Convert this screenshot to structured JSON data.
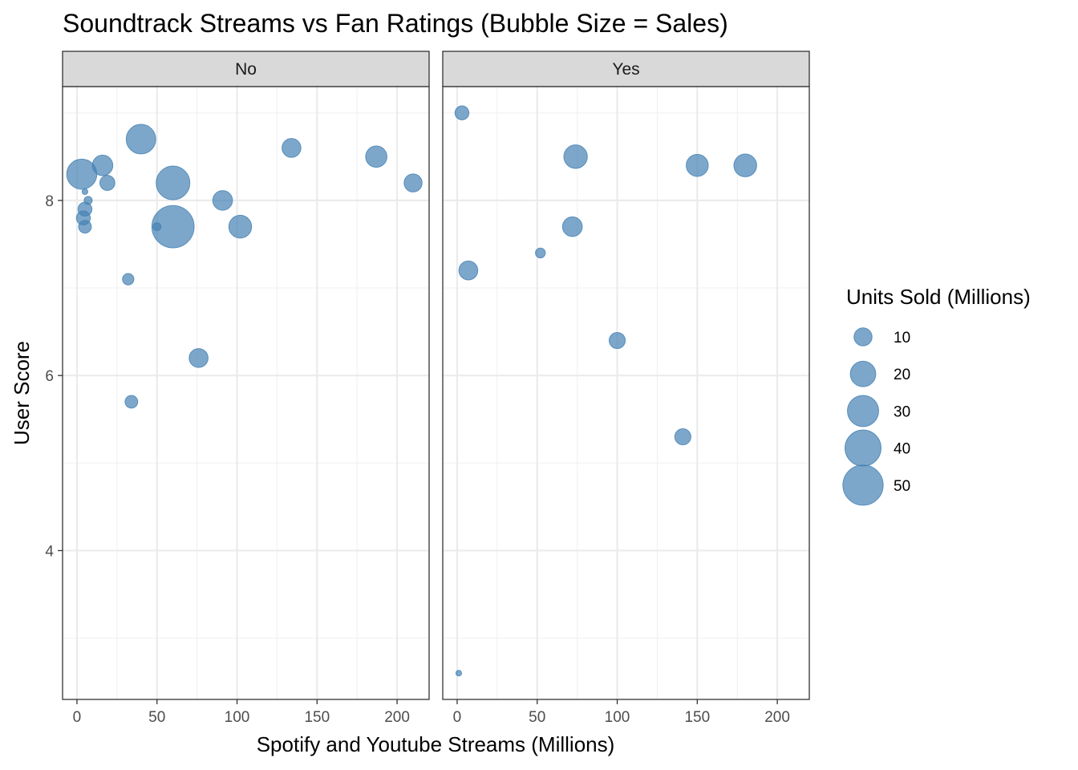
{
  "chart_data": {
    "type": "scatter",
    "title": "Soundtrack Streams vs Fan Ratings (Bubble Size = Sales)",
    "xlabel": "Spotify and Youtube Streams (Millions)",
    "ylabel": "User Score",
    "xlim": [
      -9,
      220
    ],
    "ylim": [
      2.3,
      9.3
    ],
    "x_ticks": [
      0,
      50,
      100,
      150,
      200
    ],
    "y_ticks": [
      4,
      6,
      8
    ],
    "grid": true,
    "point_color": "#4682B4",
    "legend": {
      "title": "Units Sold (Millions)",
      "placement": "right",
      "values": [
        10,
        20,
        30,
        40,
        50
      ]
    },
    "facets": [
      {
        "label": "No",
        "points": [
          {
            "x": 3,
            "y": 8.3,
            "size": 28
          },
          {
            "x": 5,
            "y": 8.1,
            "size": 1
          },
          {
            "x": 7,
            "y": 8.0,
            "size": 2
          },
          {
            "x": 5,
            "y": 7.9,
            "size": 6
          },
          {
            "x": 4,
            "y": 7.8,
            "size": 6
          },
          {
            "x": 5,
            "y": 7.7,
            "size": 5
          },
          {
            "x": 16,
            "y": 8.4,
            "size": 13
          },
          {
            "x": 19,
            "y": 8.2,
            "size": 7
          },
          {
            "x": 40,
            "y": 8.7,
            "size": 27
          },
          {
            "x": 60,
            "y": 8.2,
            "size": 35
          },
          {
            "x": 60,
            "y": 7.7,
            "size": 55
          },
          {
            "x": 50,
            "y": 7.7,
            "size": 2
          },
          {
            "x": 32,
            "y": 7.1,
            "size": 4
          },
          {
            "x": 34,
            "y": 5.7,
            "size": 5
          },
          {
            "x": 76,
            "y": 6.2,
            "size": 11
          },
          {
            "x": 91,
            "y": 8.0,
            "size": 12
          },
          {
            "x": 102,
            "y": 7.7,
            "size": 16
          },
          {
            "x": 134,
            "y": 8.6,
            "size": 11
          },
          {
            "x": 187,
            "y": 8.5,
            "size": 14
          },
          {
            "x": 210,
            "y": 8.2,
            "size": 10
          }
        ]
      },
      {
        "label": "Yes",
        "points": [
          {
            "x": 3,
            "y": 9.0,
            "size": 6
          },
          {
            "x": 74,
            "y": 8.5,
            "size": 17
          },
          {
            "x": 150,
            "y": 8.4,
            "size": 15
          },
          {
            "x": 180,
            "y": 8.4,
            "size": 16
          },
          {
            "x": 72,
            "y": 7.7,
            "size": 12
          },
          {
            "x": 7,
            "y": 7.2,
            "size": 11
          },
          {
            "x": 52,
            "y": 7.4,
            "size": 3
          },
          {
            "x": 100,
            "y": 6.4,
            "size": 8
          },
          {
            "x": 141,
            "y": 5.3,
            "size": 8
          },
          {
            "x": 1,
            "y": 2.6,
            "size": 1
          }
        ]
      }
    ]
  }
}
